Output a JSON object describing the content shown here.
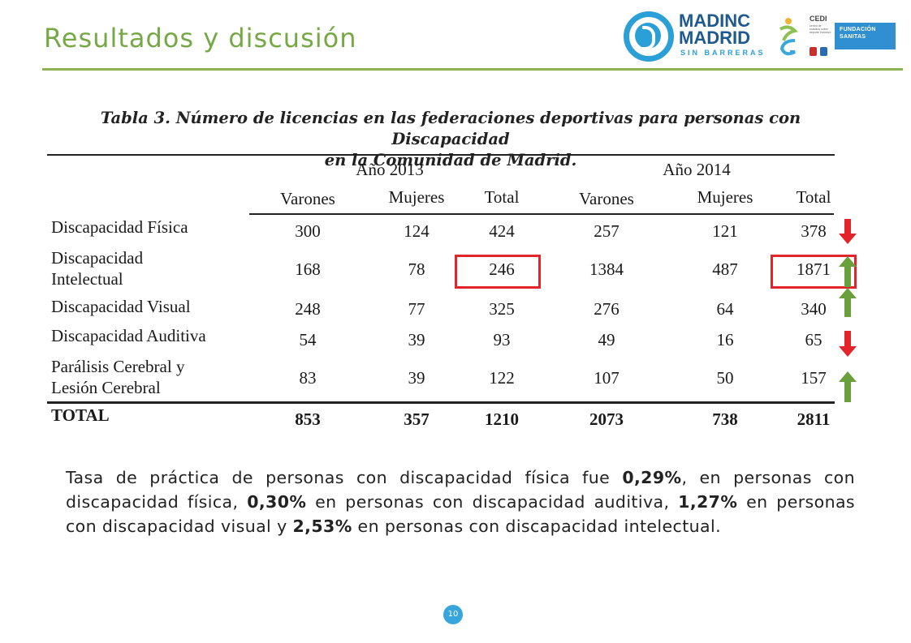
{
  "header": {
    "title": "Resultados y discusión"
  },
  "logos": {
    "madinc": {
      "line1": "MADINC",
      "line2": "MADRID",
      "line3": "SIN BARRERAS"
    },
    "cedi": {
      "name": "CEDI",
      "description": "centro de estudios sobre deporte inclusivo"
    },
    "sanitas": {
      "line1": "FUNDACIÓN",
      "line2": "SANITAS"
    }
  },
  "table": {
    "caption_line1": "Tabla 3. Número de licencias en las federaciones deportivas para personas con Discapacidad",
    "caption_line2": "en la Comunidad de Madrid.",
    "year_headers": [
      "Año 2013",
      "Año 2014"
    ],
    "sub_headers": [
      "Varones",
      "Mujeres",
      "Total",
      "Varones",
      "Mujeres",
      "Total"
    ],
    "rows": [
      {
        "label_line1": "Discapacidad Física",
        "label_line2": "",
        "values": [
          "300",
          "124",
          "424",
          "257",
          "121",
          "378"
        ],
        "trend": "down"
      },
      {
        "label_line1": "Discapacidad",
        "label_line2": "Intelectual",
        "values": [
          "168",
          "78",
          "246",
          "1384",
          "487",
          "1871"
        ],
        "trend": "up"
      },
      {
        "label_line1": "Discapacidad Visual",
        "label_line2": "",
        "values": [
          "248",
          "77",
          "325",
          "276",
          "64",
          "340"
        ],
        "trend": "up"
      },
      {
        "label_line1": "Discapacidad Auditiva",
        "label_line2": "",
        "values": [
          "54",
          "39",
          "93",
          "49",
          "16",
          "65"
        ],
        "trend": "down"
      },
      {
        "label_line1": "Parálisis Cerebral y",
        "label_line2": "Lesión Cerebral",
        "values": [
          "83",
          "39",
          "122",
          "107",
          "50",
          "157"
        ],
        "trend": "up"
      }
    ],
    "total": {
      "label": "TOTAL",
      "values": [
        "853",
        "357",
        "1210",
        "2073",
        "738",
        "2811"
      ]
    },
    "highlighted": [
      "246",
      "1871"
    ]
  },
  "colors": {
    "accent_green": "#77a846",
    "highlight_red": "#e3242b",
    "arrow_up": "#6aa03c",
    "arrow_down": "#e3242b",
    "badge_blue": "#38a5dd"
  },
  "paragraph": {
    "t1": "Tasa de práctica de personas con discapacidad física fue ",
    "v1": "0,29%",
    "t2": ", en personas con discapacidad física, ",
    "v2": "0,30%",
    "t3": " en personas con discapacidad auditiva, ",
    "v3": "1,27%",
    "t4": " en personas con discapacidad visual y ",
    "v4": "2,53%",
    "t5": " en personas con discapacidad intelectual."
  },
  "footer": {
    "page_number": "10"
  }
}
